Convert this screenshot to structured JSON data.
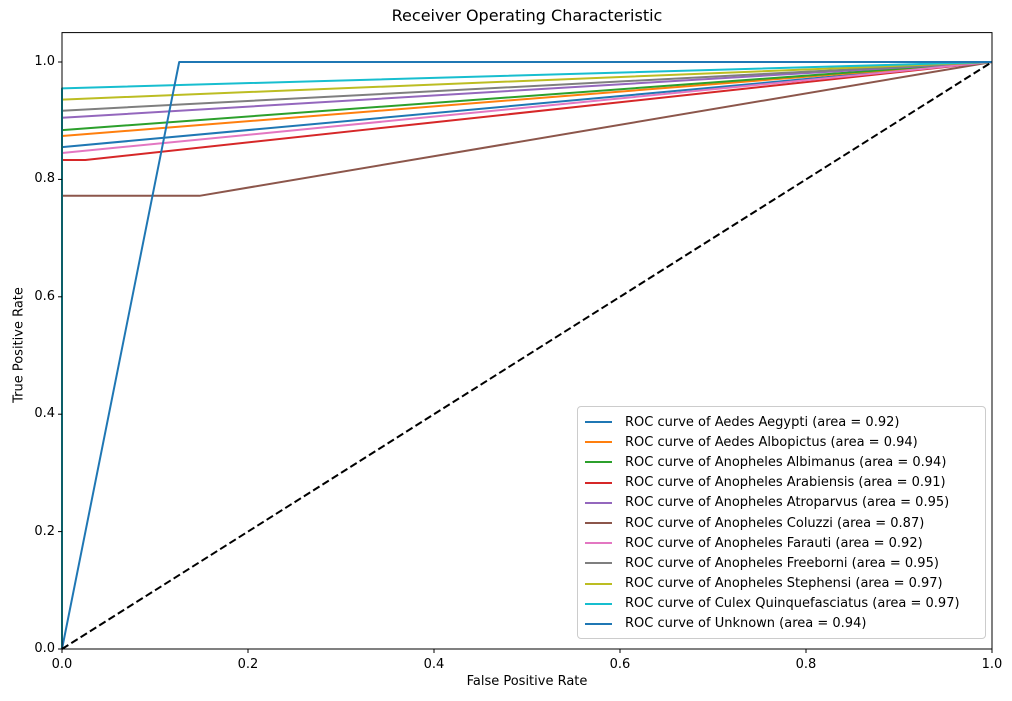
{
  "chart_data": {
    "type": "line",
    "title": "Receiver Operating Characteristic",
    "xlabel": "False Positive Rate",
    "ylabel": "True Positive Rate",
    "xlim": [
      0.0,
      1.0
    ],
    "ylim": [
      0.0,
      1.05
    ],
    "xticks": [
      "0.0",
      "0.2",
      "0.4",
      "0.6",
      "0.8",
      "1.0"
    ],
    "xtick_values": [
      0.0,
      0.2,
      0.4,
      0.6,
      0.8,
      1.0
    ],
    "yticks": [
      "0.0",
      "0.2",
      "0.4",
      "0.6",
      "0.8",
      "1.0"
    ],
    "ytick_values": [
      0.0,
      0.2,
      0.4,
      0.6,
      0.8,
      1.0
    ],
    "grid": false,
    "legend_position": "lower right",
    "series": [
      {
        "name": "ROC curve of Aedes Aegypti (area = 0.92)",
        "species": "Aedes Aegypti",
        "auc": 0.92,
        "color": "#1f77b4",
        "points": [
          [
            0,
            0
          ],
          [
            0,
            0.855
          ],
          [
            1,
            1
          ]
        ]
      },
      {
        "name": "ROC curve of Aedes Albopictus (area = 0.94)",
        "species": "Aedes Albopictus",
        "auc": 0.94,
        "color": "#ff7f0e",
        "points": [
          [
            0,
            0
          ],
          [
            0,
            0.874
          ],
          [
            1,
            1
          ]
        ]
      },
      {
        "name": "ROC curve of Anopheles Albimanus (area = 0.94)",
        "species": "Anopheles Albimanus",
        "auc": 0.94,
        "color": "#2ca02c",
        "points": [
          [
            0,
            0
          ],
          [
            0,
            0.884
          ],
          [
            1,
            1
          ]
        ]
      },
      {
        "name": "ROC curve of Anopheles Arabiensis (area = 0.91)",
        "species": "Anopheles Arabiensis",
        "auc": 0.91,
        "color": "#d62728",
        "points": [
          [
            0,
            0
          ],
          [
            0,
            0.833
          ],
          [
            0.025,
            0.833
          ],
          [
            1,
            1
          ]
        ]
      },
      {
        "name": "ROC curve of Anopheles Atroparvus (area = 0.95)",
        "species": "Anopheles Atroparvus",
        "auc": 0.95,
        "color": "#9467bd",
        "points": [
          [
            0,
            0
          ],
          [
            0,
            0.905
          ],
          [
            1,
            1
          ]
        ]
      },
      {
        "name": "ROC curve of Anopheles Coluzzi (area = 0.87)",
        "species": "Anopheles Coluzzi",
        "auc": 0.87,
        "color": "#8c564b",
        "points": [
          [
            0,
            0
          ],
          [
            0,
            0.772
          ],
          [
            0.148,
            0.772
          ],
          [
            1,
            1
          ]
        ]
      },
      {
        "name": "ROC curve of Anopheles Farauti (area = 0.92)",
        "species": "Anopheles Farauti",
        "auc": 0.92,
        "color": "#e377c2",
        "points": [
          [
            0,
            0
          ],
          [
            0,
            0.845
          ],
          [
            1,
            1
          ]
        ]
      },
      {
        "name": "ROC curve of Anopheles Freeborni (area = 0.95)",
        "species": "Anopheles Freeborni",
        "auc": 0.95,
        "color": "#7f7f7f",
        "points": [
          [
            0,
            0
          ],
          [
            0,
            0.917
          ],
          [
            1,
            1
          ]
        ]
      },
      {
        "name": "ROC curve of Anopheles Stephensi (area = 0.97)",
        "species": "Anopheles Stephensi",
        "auc": 0.97,
        "color": "#bcbd22",
        "points": [
          [
            0,
            0
          ],
          [
            0,
            0.936
          ],
          [
            1,
            1
          ]
        ]
      },
      {
        "name": "ROC curve of Culex Quinquefasciatus (area = 0.97)",
        "species": "Culex Quinquefasciatus",
        "auc": 0.97,
        "color": "#17becf",
        "points": [
          [
            0,
            0
          ],
          [
            0,
            0.955
          ],
          [
            1,
            1
          ]
        ]
      },
      {
        "name": "ROC curve of Unknown (area = 0.94)",
        "species": "Unknown",
        "auc": 0.94,
        "color": "#1f77b4",
        "points": [
          [
            0,
            0
          ],
          [
            0.126,
            1
          ],
          [
            1,
            1
          ]
        ]
      }
    ],
    "reference_line": {
      "name": "chance-diagonal",
      "style": "dashed",
      "color": "#000000",
      "points": [
        [
          0,
          0
        ],
        [
          1,
          1
        ]
      ]
    },
    "colors": {
      "background": "#ffffff",
      "axes": "#000000",
      "legend_border": "#cccccc"
    }
  }
}
